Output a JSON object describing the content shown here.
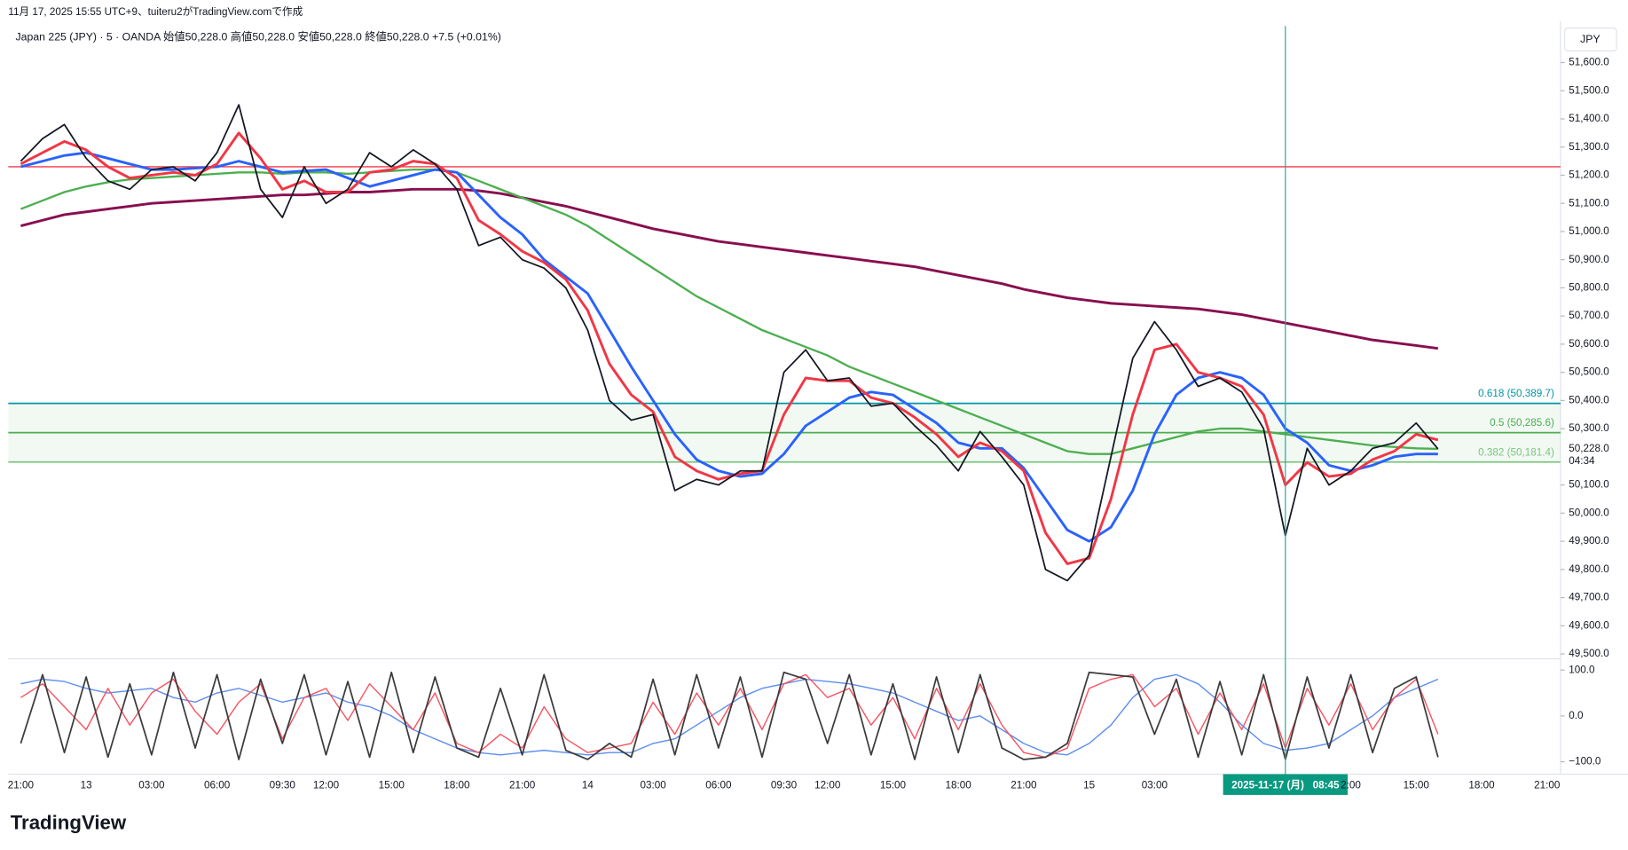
{
  "header": {
    "created": "11月 17, 2025 15:55 UTC+9、tuiteru2がTradingView.comで作成",
    "legend": "Japan 225 (JPY) · 5 · OANDA  始値50,228.0  高値50,228.0  安値50,228.0  終値50,228.0  +7.5 (+0.01%)",
    "currency": "JPY",
    "logo": "TradingView"
  },
  "chart_data": [
    {
      "type": "line",
      "categories": [
        "21:00",
        null,
        null,
        "13",
        null,
        null,
        "03:00",
        null,
        null,
        "06:00",
        null,
        null,
        "09:30",
        null,
        "12:00",
        null,
        null,
        "15:00",
        null,
        null,
        "18:00",
        null,
        null,
        "21:00",
        null,
        null,
        "14",
        null,
        null,
        "03:00",
        null,
        null,
        "06:00",
        null,
        null,
        "09:30",
        null,
        "12:00",
        null,
        null,
        "15:00",
        null,
        null,
        "18:00",
        null,
        null,
        "21:00",
        null,
        null,
        "15",
        null,
        null,
        "03:00",
        null,
        null,
        null,
        null,
        null,
        "2025-11-17 (月)   08:45",
        null,
        null,
        "2:00",
        null,
        null,
        "15:00",
        null,
        null,
        "18:00",
        null,
        null,
        "21:00"
      ],
      "crosshair_category": 58,
      "series": [
        {
          "color": "#880e4f",
          "width": 2.5,
          "values": [
            51020,
            51040,
            51060,
            51070,
            51080,
            51090,
            51100,
            51105,
            51110,
            51115,
            51120,
            51125,
            51130,
            51130,
            51135,
            51140,
            51140,
            51145,
            51150,
            51150,
            51150,
            51145,
            51135,
            51120,
            51105,
            51090,
            51070,
            51050,
            51030,
            51010,
            50995,
            50980,
            50965,
            50955,
            50945,
            50935,
            50925,
            50915,
            50905,
            50895,
            50885,
            50875,
            50860,
            50845,
            50830,
            50815,
            50795,
            50780,
            50765,
            50755,
            50745,
            50740,
            50735,
            50730,
            50725,
            50715,
            50705,
            50690,
            50675,
            50660,
            50645,
            50630,
            50615,
            50605,
            50595,
            50585,
            null,
            null,
            null,
            null,
            null
          ]
        },
        {
          "color": "#4caf50",
          "width": 2,
          "values": [
            51080,
            51110,
            51140,
            51160,
            51175,
            51185,
            51190,
            51195,
            51200,
            51205,
            51210,
            51210,
            51205,
            51210,
            51210,
            51205,
            51210,
            51215,
            51220,
            51220,
            51210,
            51180,
            51150,
            51120,
            51090,
            51060,
            51020,
            50970,
            50920,
            50870,
            50820,
            50770,
            50730,
            50690,
            50650,
            50620,
            50590,
            50560,
            50520,
            50490,
            50460,
            50430,
            50400,
            50370,
            50340,
            50310,
            50280,
            50250,
            50220,
            50210,
            50210,
            50230,
            50250,
            50270,
            50290,
            50300,
            50300,
            50290,
            50280,
            50270,
            50260,
            50250,
            50240,
            50235,
            50230,
            50228,
            null,
            null,
            null,
            null,
            null
          ]
        },
        {
          "color": "#2962ff",
          "width": 2.5,
          "values": [
            51230,
            51250,
            51270,
            51280,
            51260,
            51240,
            51220,
            51220,
            51225,
            51230,
            51250,
            51230,
            51210,
            51215,
            51220,
            51190,
            51160,
            51180,
            51200,
            51220,
            51210,
            51130,
            51050,
            50990,
            50900,
            50840,
            50780,
            50650,
            50520,
            50400,
            50280,
            50190,
            50150,
            50130,
            50140,
            50210,
            50310,
            50360,
            50410,
            50430,
            50420,
            50370,
            50320,
            50250,
            50230,
            50230,
            50160,
            50050,
            49940,
            49900,
            49950,
            50080,
            50280,
            50420,
            50480,
            50500,
            50480,
            50420,
            50300,
            50250,
            50170,
            50150,
            50170,
            50200,
            50210,
            50210,
            null,
            null,
            null,
            null,
            null
          ]
        },
        {
          "color": "#f23645",
          "width": 2.5,
          "values": [
            51240,
            51280,
            51320,
            51290,
            51230,
            51190,
            51200,
            51210,
            51200,
            51240,
            51350,
            51260,
            51150,
            51180,
            51140,
            51140,
            51210,
            51220,
            51250,
            51240,
            51190,
            51040,
            50990,
            50930,
            50890,
            50830,
            50720,
            50530,
            50420,
            50360,
            50200,
            50150,
            50120,
            50140,
            50150,
            50350,
            50480,
            50470,
            50470,
            50410,
            50390,
            50340,
            50280,
            50200,
            50250,
            50220,
            50150,
            49930,
            49820,
            49840,
            50050,
            50350,
            50580,
            50600,
            50500,
            50480,
            50450,
            50350,
            50100,
            50180,
            50130,
            50140,
            50190,
            50220,
            50280,
            50260,
            null,
            null,
            null,
            null,
            null
          ]
        },
        {
          "color": "#131722",
          "width": 1.5,
          "values": [
            51250,
            51330,
            51380,
            51260,
            51180,
            51150,
            51220,
            51230,
            51180,
            51280,
            51450,
            51150,
            51050,
            51230,
            51100,
            51150,
            51280,
            51230,
            51290,
            51240,
            51150,
            50950,
            50980,
            50900,
            50870,
            50800,
            50650,
            50400,
            50330,
            50350,
            50080,
            50120,
            50100,
            50150,
            50150,
            50500,
            50580,
            50470,
            50480,
            50380,
            50390,
            50310,
            50240,
            50150,
            50290,
            50200,
            50100,
            49800,
            49760,
            49850,
            50200,
            50550,
            50680,
            50580,
            50450,
            50480,
            50430,
            50300,
            49920,
            50230,
            50100,
            50150,
            50230,
            50250,
            50320,
            50228,
            null,
            null,
            null,
            null,
            null
          ]
        }
      ],
      "hlines": [
        {
          "value": 51230,
          "color": "#f23645"
        }
      ],
      "fib_levels": [
        {
          "value": 50389.7,
          "label": "0.618 (50,389.7)",
          "color": "#0097a7"
        },
        {
          "value": 50285.6,
          "label": "0.5 (50,285.6)",
          "color": "#4caf50"
        },
        {
          "value": 50181.4,
          "label": "0.382 (50,181.4)",
          "color": "#81c784"
        }
      ],
      "last_price": {
        "value": 50228,
        "label": "50,228.0"
      },
      "countdown": "04:34",
      "ylim": [
        49490,
        51730
      ],
      "yticks": [
        {
          "value": 49500,
          "label": "49,500.0"
        },
        {
          "value": 49600,
          "label": "49,600.0"
        },
        {
          "value": 49700,
          "label": "49,700.0"
        },
        {
          "value": 49800,
          "label": "49,800.0"
        },
        {
          "value": 49900,
          "label": "49,900.0"
        },
        {
          "value": 50000,
          "label": "50,000.0"
        },
        {
          "value": 50100,
          "label": "50,100.0"
        },
        {
          "value": 50300,
          "label": "50,300.0"
        },
        {
          "value": 50400,
          "label": "50,400.0"
        },
        {
          "value": 50500,
          "label": "50,500.0"
        },
        {
          "value": 50600,
          "label": "50,600.0"
        },
        {
          "value": 50700,
          "label": "50,700.0"
        },
        {
          "value": 50800,
          "label": "50,800.0"
        },
        {
          "value": 50900,
          "label": "50,900.0"
        },
        {
          "value": 51000,
          "label": "51,000.0"
        },
        {
          "value": 51100,
          "label": "51,100.0"
        },
        {
          "value": 51200,
          "label": "51,200.0"
        },
        {
          "value": 51300,
          "label": "51,300.0"
        },
        {
          "value": 51400,
          "label": "51,400.0"
        },
        {
          "value": 51500,
          "label": "51,500.0"
        },
        {
          "value": 51600,
          "label": "51,600.0"
        }
      ]
    },
    {
      "type": "line",
      "series": [
        {
          "color": "#5b8def",
          "width": 1.2,
          "values": [
            70,
            80,
            75,
            60,
            50,
            55,
            60,
            40,
            30,
            50,
            60,
            45,
            30,
            40,
            50,
            30,
            20,
            0,
            -30,
            -50,
            -70,
            -80,
            -85,
            -80,
            -75,
            -80,
            -85,
            -80,
            -80,
            -60,
            -50,
            -20,
            10,
            40,
            60,
            70,
            80,
            75,
            70,
            60,
            50,
            30,
            10,
            -10,
            0,
            -30,
            -60,
            -80,
            -85,
            -60,
            -20,
            40,
            80,
            90,
            70,
            30,
            -20,
            -60,
            -75,
            -70,
            -60,
            -30,
            0,
            40,
            60,
            80,
            null,
            null,
            null,
            null,
            null
          ]
        },
        {
          "color": "#f7525f",
          "width": 1.2,
          "values": [
            40,
            70,
            20,
            -30,
            60,
            -20,
            50,
            80,
            10,
            -40,
            30,
            70,
            -50,
            40,
            60,
            -10,
            70,
            20,
            -30,
            50,
            -60,
            -80,
            -40,
            -70,
            20,
            -50,
            -80,
            -70,
            -60,
            30,
            -40,
            50,
            -20,
            60,
            -30,
            70,
            90,
            40,
            60,
            -20,
            40,
            -50,
            60,
            -30,
            70,
            -20,
            -80,
            -90,
            -70,
            60,
            80,
            90,
            20,
            60,
            -40,
            50,
            -30,
            70,
            -70,
            60,
            -20,
            70,
            -30,
            40,
            80,
            -40,
            null,
            null,
            null,
            null,
            null
          ]
        },
        {
          "color": "#3c3c3c",
          "width": 1.5,
          "values": [
            -60,
            90,
            -80,
            85,
            -90,
            70,
            -85,
            95,
            -70,
            90,
            -95,
            80,
            -60,
            90,
            -85,
            75,
            -90,
            95,
            -80,
            85,
            -70,
            -90,
            60,
            -85,
            90,
            -75,
            -95,
            -60,
            -90,
            80,
            -85,
            90,
            -70,
            85,
            -90,
            95,
            80,
            -60,
            90,
            -85,
            70,
            -95,
            85,
            -80,
            90,
            -70,
            -95,
            -90,
            -60,
            95,
            90,
            85,
            -40,
            80,
            -90,
            75,
            -85,
            90,
            -95,
            85,
            -70,
            90,
            -80,
            60,
            85,
            -90,
            null,
            null,
            null,
            null,
            null
          ]
        }
      ],
      "ylim": [
        -127,
        120
      ],
      "yticks": [
        {
          "value": 100,
          "label": "100.0"
        },
        {
          "value": 0,
          "label": "0.0"
        },
        {
          "value": -100,
          "label": "−100.0"
        }
      ]
    }
  ]
}
